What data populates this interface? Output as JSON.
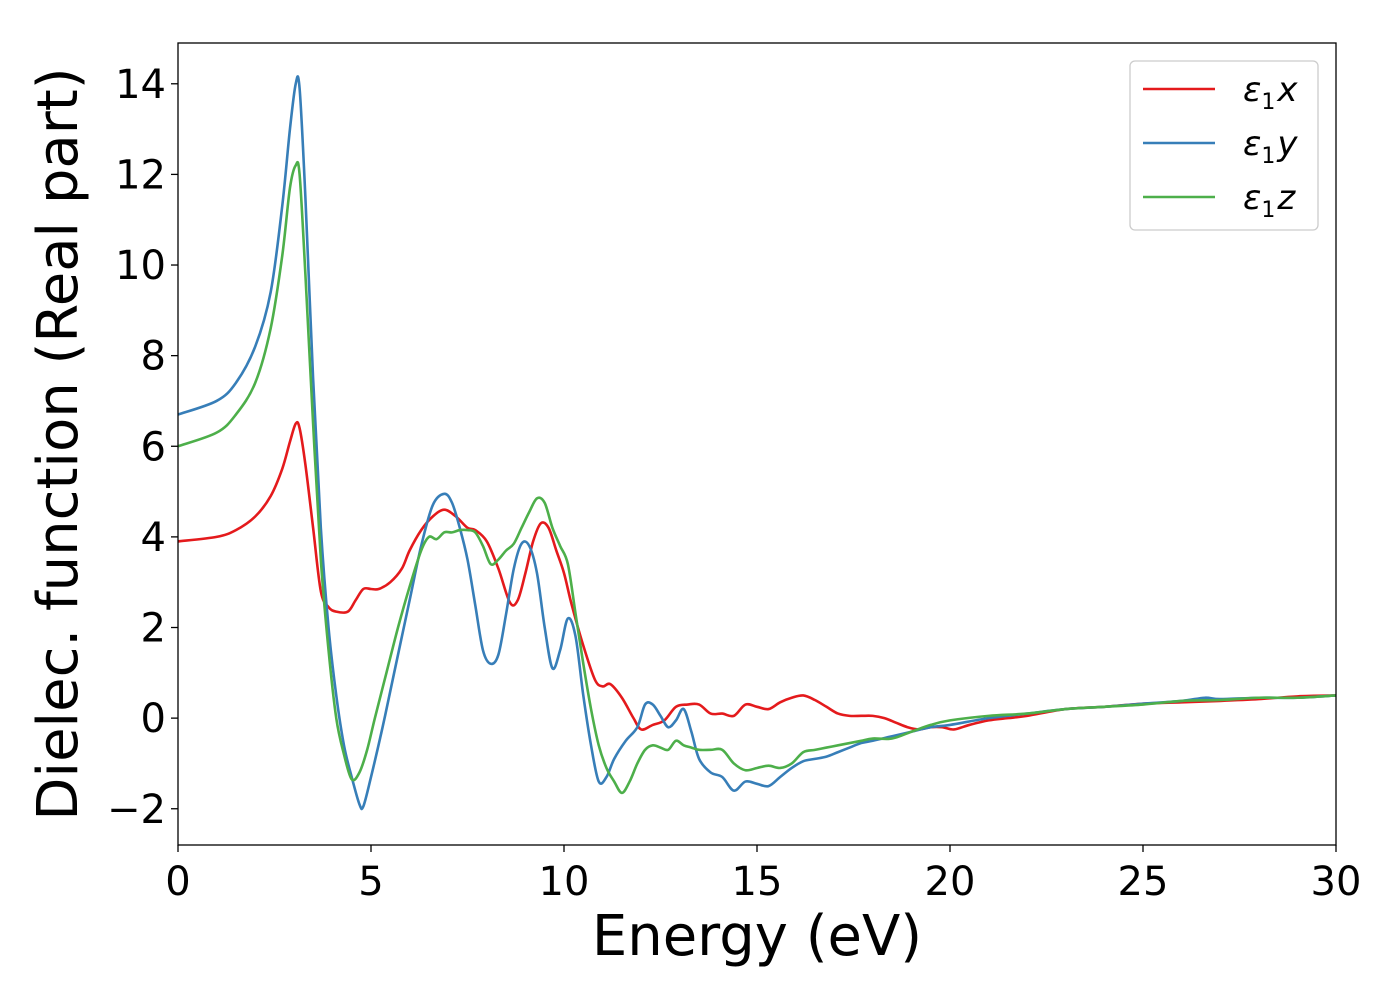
{
  "chart_data": {
    "type": "line",
    "xlabel": "Energy (eV)",
    "ylabel": "Dielec. function (Real part)",
    "xlim": [
      0,
      30
    ],
    "ylim": [
      -2.8,
      14.9
    ],
    "xticks": [
      0,
      5,
      10,
      15,
      20,
      25,
      30
    ],
    "yticks": [
      -2,
      0,
      2,
      4,
      6,
      8,
      10,
      12,
      14
    ],
    "grid": false,
    "legend_position": "top-right",
    "series": [
      {
        "name": "x",
        "legend": {
          "base": "ε",
          "sub": "1",
          "suffix": "x"
        },
        "color": "#e41a1c",
        "x": [
          0,
          1,
          1.5,
          2,
          2.4,
          2.7,
          2.9,
          3.05,
          3.15,
          3.3,
          3.5,
          3.7,
          3.9,
          4.1,
          4.4,
          4.6,
          4.8,
          5.0,
          5.2,
          5.5,
          5.8,
          6.0,
          6.3,
          6.6,
          6.9,
          7.2,
          7.5,
          7.7,
          8.0,
          8.3,
          8.6,
          8.8,
          9.0,
          9.2,
          9.4,
          9.6,
          9.8,
          10.0,
          10.2,
          10.5,
          10.8,
          11.0,
          11.2,
          11.5,
          11.8,
          12.0,
          12.3,
          12.6,
          12.9,
          13.2,
          13.5,
          13.8,
          14.1,
          14.4,
          14.7,
          15.0,
          15.3,
          15.6,
          15.9,
          16.2,
          16.5,
          16.8,
          17.1,
          17.4,
          17.7,
          18.0,
          18.3,
          18.6,
          18.9,
          19.2,
          19.5,
          19.8,
          20.1,
          20.5,
          21.0,
          21.5,
          22,
          23,
          24,
          25,
          26,
          27,
          28,
          29,
          30
        ],
        "y": [
          3.9,
          4.0,
          4.15,
          4.45,
          4.9,
          5.5,
          6.1,
          6.5,
          6.4,
          5.6,
          4.2,
          2.8,
          2.45,
          2.35,
          2.35,
          2.6,
          2.85,
          2.85,
          2.85,
          3.0,
          3.3,
          3.7,
          4.15,
          4.45,
          4.6,
          4.45,
          4.2,
          4.15,
          3.9,
          3.3,
          2.55,
          2.6,
          3.2,
          3.9,
          4.3,
          4.2,
          3.7,
          3.2,
          2.5,
          1.6,
          0.85,
          0.7,
          0.75,
          0.45,
          0.0,
          -0.25,
          -0.15,
          -0.05,
          0.25,
          0.3,
          0.3,
          0.1,
          0.1,
          0.05,
          0.3,
          0.25,
          0.2,
          0.35,
          0.45,
          0.5,
          0.4,
          0.25,
          0.1,
          0.05,
          0.05,
          0.05,
          0.0,
          -0.1,
          -0.2,
          -0.25,
          -0.2,
          -0.2,
          -0.25,
          -0.15,
          -0.05,
          0.0,
          0.05,
          0.2,
          0.25,
          0.32,
          0.35,
          0.38,
          0.42,
          0.48,
          0.5
        ]
      },
      {
        "name": "y",
        "legend": {
          "base": "ε",
          "sub": "1",
          "suffix": "y"
        },
        "color": "#377eb8",
        "x": [
          0,
          1,
          1.5,
          2,
          2.4,
          2.7,
          2.9,
          3.05,
          3.15,
          3.3,
          3.5,
          3.7,
          3.9,
          4.1,
          4.3,
          4.5,
          4.7,
          4.8,
          5.0,
          5.3,
          5.6,
          6.0,
          6.3,
          6.6,
          6.9,
          7.1,
          7.3,
          7.5,
          7.7,
          7.9,
          8.1,
          8.3,
          8.5,
          8.7,
          8.9,
          9.1,
          9.3,
          9.5,
          9.7,
          9.9,
          10.1,
          10.3,
          10.5,
          10.7,
          10.9,
          11.1,
          11.3,
          11.6,
          11.9,
          12.1,
          12.3,
          12.5,
          12.7,
          12.9,
          13.1,
          13.3,
          13.5,
          13.8,
          14.1,
          14.4,
          14.7,
          15.0,
          15.3,
          15.6,
          15.9,
          16.2,
          16.5,
          16.8,
          17.1,
          17.4,
          17.7,
          18.0,
          18.5,
          19.0,
          19.5,
          20.0,
          21.0,
          22.0,
          23.0,
          24.0,
          25.0,
          26.0,
          26.6,
          27.0,
          28.0,
          29.0,
          30.0
        ],
        "y": [
          6.7,
          7.0,
          7.4,
          8.2,
          9.4,
          11.3,
          13.0,
          14.0,
          13.9,
          11.5,
          7.5,
          4.2,
          2.0,
          0.5,
          -0.6,
          -1.3,
          -1.9,
          -1.95,
          -1.3,
          -0.2,
          1.0,
          2.6,
          3.8,
          4.7,
          4.95,
          4.75,
          4.2,
          3.5,
          2.5,
          1.5,
          1.2,
          1.4,
          2.3,
          3.3,
          3.85,
          3.8,
          3.2,
          2.0,
          1.1,
          1.5,
          2.2,
          1.8,
          0.5,
          -0.6,
          -1.4,
          -1.3,
          -0.9,
          -0.5,
          -0.2,
          0.3,
          0.3,
          0.05,
          -0.2,
          -0.05,
          0.2,
          -0.3,
          -0.9,
          -1.2,
          -1.3,
          -1.6,
          -1.4,
          -1.45,
          -1.5,
          -1.3,
          -1.1,
          -0.95,
          -0.9,
          -0.85,
          -0.75,
          -0.65,
          -0.55,
          -0.5,
          -0.4,
          -0.3,
          -0.2,
          -0.15,
          0.0,
          0.1,
          0.2,
          0.25,
          0.32,
          0.38,
          0.45,
          0.42,
          0.45,
          0.45,
          0.5
        ]
      },
      {
        "name": "z",
        "legend": {
          "base": "ε",
          "sub": "1",
          "suffix": "z"
        },
        "color": "#4daf4a",
        "x": [
          0,
          1,
          1.5,
          2,
          2.4,
          2.7,
          2.9,
          3.05,
          3.15,
          3.3,
          3.5,
          3.7,
          3.9,
          4.1,
          4.3,
          4.5,
          4.7,
          4.9,
          5.1,
          5.4,
          5.7,
          6.0,
          6.3,
          6.5,
          6.7,
          6.9,
          7.1,
          7.3,
          7.5,
          7.7,
          7.9,
          8.1,
          8.3,
          8.5,
          8.7,
          8.9,
          9.1,
          9.3,
          9.5,
          9.7,
          9.9,
          10.1,
          10.3,
          10.5,
          10.7,
          10.9,
          11.1,
          11.3,
          11.5,
          11.7,
          11.9,
          12.1,
          12.3,
          12.5,
          12.7,
          12.9,
          13.1,
          13.3,
          13.5,
          13.8,
          14.1,
          14.4,
          14.7,
          15.0,
          15.3,
          15.6,
          15.9,
          16.2,
          16.5,
          16.8,
          17.1,
          17.4,
          17.7,
          18.0,
          18.5,
          19.0,
          19.5,
          20.0,
          21.0,
          22.0,
          23.0,
          24.0,
          25.0,
          26.0,
          27.0,
          28.0,
          29.0,
          30.0
        ],
        "y": [
          6.0,
          6.3,
          6.7,
          7.4,
          8.6,
          10.2,
          11.7,
          12.2,
          12.0,
          9.8,
          6.5,
          3.5,
          1.5,
          0.0,
          -0.8,
          -1.35,
          -1.2,
          -0.7,
          0.0,
          1.0,
          2.0,
          2.9,
          3.7,
          4.0,
          3.95,
          4.1,
          4.1,
          4.15,
          4.15,
          4.1,
          3.8,
          3.4,
          3.5,
          3.7,
          3.85,
          4.2,
          4.55,
          4.85,
          4.75,
          4.2,
          3.8,
          3.4,
          2.3,
          1.2,
          0.2,
          -0.6,
          -1.1,
          -1.4,
          -1.65,
          -1.4,
          -1.0,
          -0.7,
          -0.6,
          -0.65,
          -0.7,
          -0.5,
          -0.6,
          -0.65,
          -0.7,
          -0.7,
          -0.7,
          -1.0,
          -1.15,
          -1.1,
          -1.05,
          -1.1,
          -1.0,
          -0.75,
          -0.7,
          -0.65,
          -0.6,
          -0.55,
          -0.5,
          -0.45,
          -0.45,
          -0.3,
          -0.15,
          -0.05,
          0.05,
          0.1,
          0.2,
          0.25,
          0.3,
          0.38,
          0.4,
          0.45,
          0.45,
          0.5
        ]
      }
    ]
  }
}
